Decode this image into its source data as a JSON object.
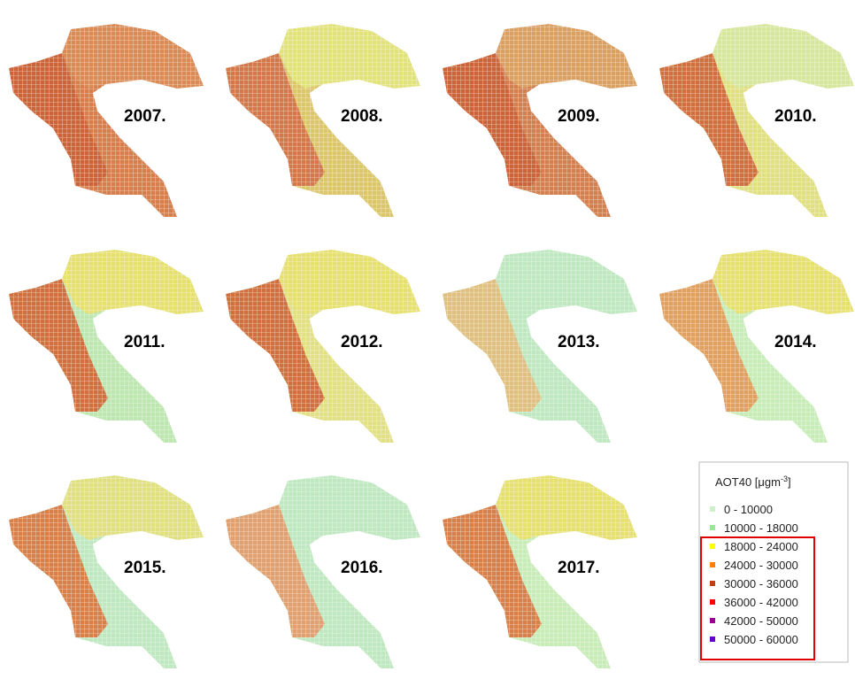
{
  "panels": [
    {
      "year": "2007.",
      "colors": {
        "west": "#cc643a",
        "north": "#d98a55",
        "south": "#d67e4c"
      }
    },
    {
      "year": "2008.",
      "colors": {
        "west": "#d2784a",
        "north": "#e2e27c",
        "south": "#dcc66c"
      }
    },
    {
      "year": "2009.",
      "colors": {
        "west": "#cc643a",
        "north": "#d9a062",
        "south": "#d38050"
      }
    },
    {
      "year": "2010.",
      "colors": {
        "west": "#d0703e",
        "north": "#d6e69c",
        "south": "#e0e082"
      }
    },
    {
      "year": "2011.",
      "colors": {
        "west": "#d0703e",
        "north": "#e6e070",
        "south": "#bde6b0"
      }
    },
    {
      "year": "2012.",
      "colors": {
        "west": "#d0703e",
        "north": "#e6e070",
        "south": "#e2e084"
      }
    },
    {
      "year": "2013.",
      "colors": {
        "west": "#e0c080",
        "north": "#bfe8c0",
        "south": "#bfe8c0"
      }
    },
    {
      "year": "2014.",
      "colors": {
        "west": "#e0a060",
        "north": "#e6e070",
        "south": "#c8ecb8"
      }
    },
    {
      "year": "2015.",
      "colors": {
        "west": "#d8804a",
        "north": "#e0e080",
        "south": "#bfe8c0"
      }
    },
    {
      "year": "2016.",
      "colors": {
        "west": "#e0a070",
        "north": "#bfe8c0",
        "south": "#bfe8c0"
      }
    },
    {
      "year": "2017.",
      "colors": {
        "west": "#d8804a",
        "north": "#e6e070",
        "south": "#c8ecb8"
      }
    }
  ],
  "legend": {
    "title": "AOT40 [μgm",
    "title_sup": "-3",
    "title_end": "]",
    "items": [
      {
        "label": "0 - 10000",
        "color": "#ccf2cc"
      },
      {
        "label": "10000 - 18000",
        "color": "#99e699"
      },
      {
        "label": "18000 - 24000",
        "color": "#ffff00"
      },
      {
        "label": "24000 - 30000",
        "color": "#ff8000"
      },
      {
        "label": "30000 - 36000",
        "color": "#c04010"
      },
      {
        "label": "36000 - 42000",
        "color": "#ff0000"
      },
      {
        "label": "42000 - 50000",
        "color": "#990099"
      },
      {
        "label": "50000 - 60000",
        "color": "#6600cc"
      }
    ]
  }
}
